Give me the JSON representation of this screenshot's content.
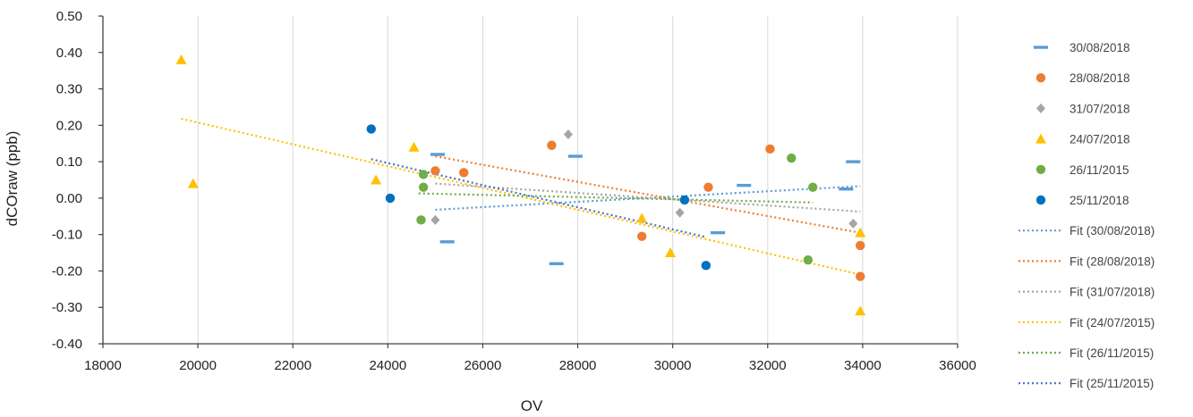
{
  "chart_data": {
    "type": "scatter",
    "title": "",
    "xlabel": "OV",
    "ylabel": "dCOraw (ppb)",
    "xlim": [
      18000,
      36000
    ],
    "ylim": [
      -0.4,
      0.5
    ],
    "x_ticks": [
      "18000",
      "20000",
      "22000",
      "24000",
      "26000",
      "28000",
      "30000",
      "32000",
      "34000",
      "36000"
    ],
    "y_ticks": [
      "0.50",
      "0.40",
      "0.30",
      "0.20",
      "0.10",
      "0.00",
      "-0.10",
      "-0.20",
      "-0.30",
      "-0.40"
    ],
    "grid": "vertical",
    "legend_position": "right",
    "series": [
      {
        "name": "30/08/2018",
        "marker": "dash",
        "color": "#5b9bd5",
        "points": [
          [
            25050,
            0.12
          ],
          [
            25250,
            -0.12
          ],
          [
            27550,
            -0.18
          ],
          [
            27950,
            0.115
          ],
          [
            30950,
            -0.095
          ],
          [
            31500,
            0.035
          ],
          [
            33650,
            0.025
          ],
          [
            33800,
            0.1
          ]
        ]
      },
      {
        "name": "28/08/2018",
        "marker": "circle",
        "color": "#ed7d31",
        "points": [
          [
            25000,
            0.075
          ],
          [
            25600,
            0.07
          ],
          [
            27450,
            0.145
          ],
          [
            29350,
            -0.105
          ],
          [
            30750,
            0.03
          ],
          [
            32050,
            0.135
          ],
          [
            33950,
            -0.13
          ],
          [
            33950,
            -0.215
          ]
        ]
      },
      {
        "name": "31/07/2018",
        "marker": "diamond",
        "color": "#a5a5a5",
        "points": [
          [
            25000,
            -0.06
          ],
          [
            27800,
            0.175
          ],
          [
            30150,
            -0.04
          ],
          [
            33800,
            -0.07
          ]
        ]
      },
      {
        "name": "24/07/2018",
        "marker": "triangle",
        "color": "#ffc000",
        "points": [
          [
            19650,
            0.38
          ],
          [
            19900,
            0.04
          ],
          [
            23750,
            0.05
          ],
          [
            24550,
            0.14
          ],
          [
            29350,
            -0.055
          ],
          [
            29950,
            -0.15
          ],
          [
            33950,
            -0.095
          ],
          [
            33950,
            -0.31
          ]
        ]
      },
      {
        "name": "26/11/2015",
        "marker": "circle",
        "color": "#70ad47",
        "points": [
          [
            24700,
            -0.06
          ],
          [
            24750,
            0.065
          ],
          [
            24750,
            0.03
          ],
          [
            32500,
            0.11
          ],
          [
            32850,
            -0.17
          ],
          [
            32950,
            0.03
          ]
        ]
      },
      {
        "name": "25/11/2018",
        "marker": "circle",
        "color": "#0070c0",
        "points": [
          [
            23650,
            0.19
          ],
          [
            24050,
            0.0
          ],
          [
            30250,
            -0.005
          ],
          [
            30700,
            -0.185
          ]
        ]
      }
    ],
    "fits": [
      {
        "name": "Fit (30/08/2018)",
        "color": "#5b9bd5",
        "x": [
          25000,
          33950
        ],
        "y": [
          -0.032,
          0.033
        ]
      },
      {
        "name": "Fit (28/08/2018)",
        "color": "#ed7d31",
        "x": [
          25000,
          33950
        ],
        "y": [
          0.115,
          -0.095
        ]
      },
      {
        "name": "Fit (31/07/2018)",
        "color": "#a5a5a5",
        "x": [
          25000,
          33950
        ],
        "y": [
          0.04,
          -0.037
        ]
      },
      {
        "name": "Fit (24/07/2015)",
        "color": "#ffc000",
        "x": [
          19650,
          33950
        ],
        "y": [
          0.218,
          -0.21
        ]
      },
      {
        "name": "Fit (26/11/2015)",
        "color": "#70ad47",
        "x": [
          24650,
          32950
        ],
        "y": [
          0.013,
          -0.012
        ]
      },
      {
        "name": "Fit (25/11/2015)",
        "color": "#4472c4",
        "x": [
          23650,
          30700
        ],
        "y": [
          0.107,
          -0.107
        ]
      }
    ]
  }
}
